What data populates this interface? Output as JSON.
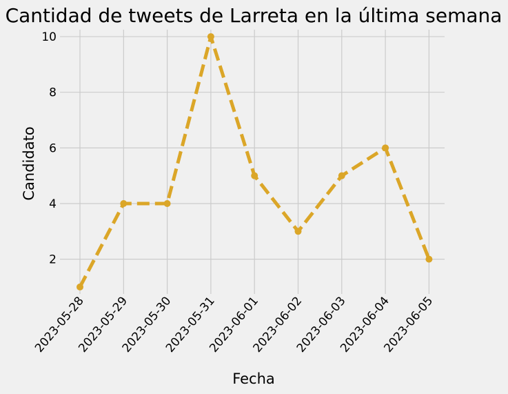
{
  "chart_data": {
    "type": "line",
    "title": "Cantidad de tweets de Larreta en la última semana",
    "xlabel": "Fecha",
    "ylabel": "Candidato",
    "x": [
      "2023-05-28",
      "2023-05-29",
      "2023-05-30",
      "2023-05-31",
      "2023-06-01",
      "2023-06-02",
      "2023-06-03",
      "2023-06-04",
      "2023-06-05"
    ],
    "values": [
      1,
      4,
      4,
      10,
      5,
      3,
      5,
      6,
      2
    ],
    "yticks": [
      "2",
      "4",
      "6",
      "8",
      "10"
    ],
    "ylim": [
      0.75,
      10.25
    ],
    "grid": true,
    "line_style": "dashed",
    "marker": "circle",
    "colors": {
      "line": "#dba628",
      "background": "#f0f0f0",
      "grid": "#cbcbcb"
    }
  }
}
